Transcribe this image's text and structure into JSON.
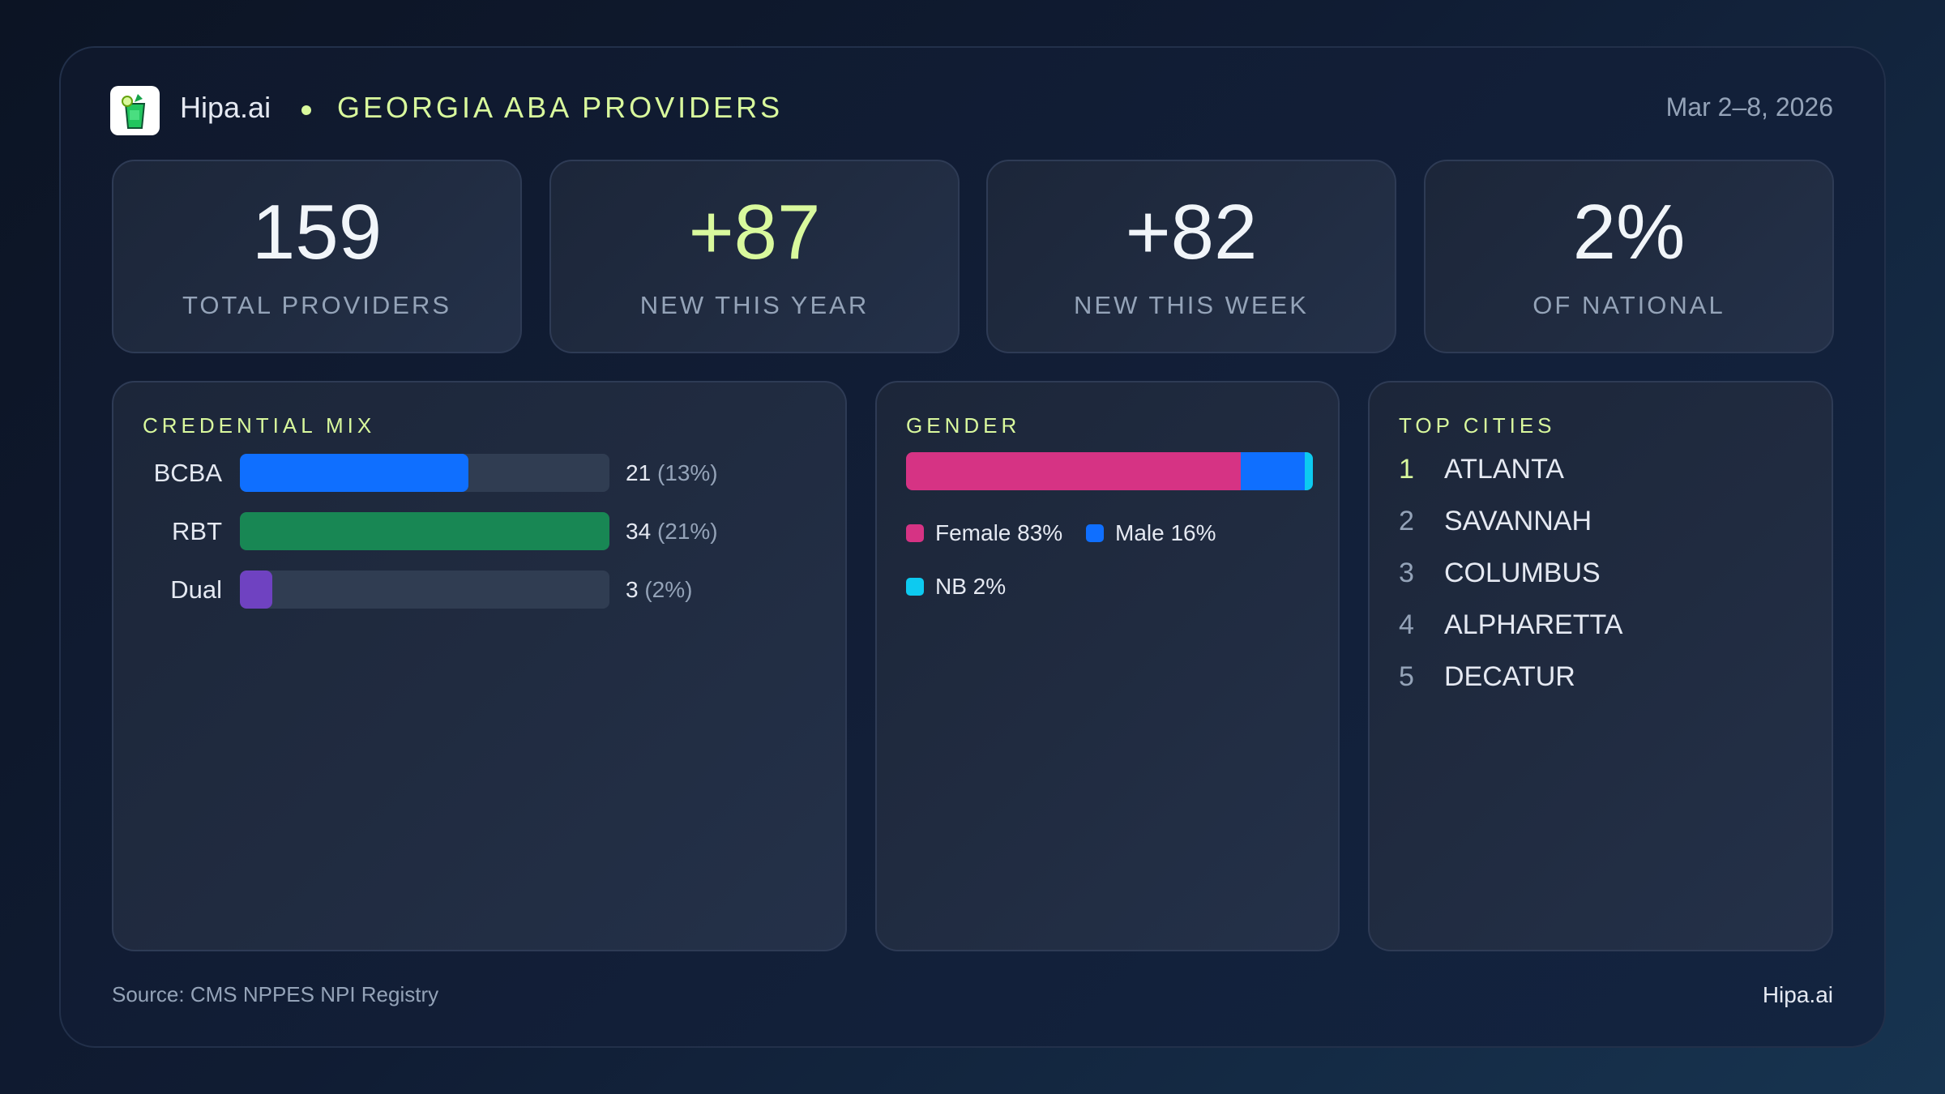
{
  "header": {
    "brand": "Hipa.ai",
    "title": "GEORGIA ABA PROVIDERS",
    "date_range": "Mar 2–8, 2026"
  },
  "kpis": [
    {
      "value": "159",
      "label": "TOTAL PROVIDERS",
      "accent": false
    },
    {
      "value": "+87",
      "label": "NEW THIS YEAR",
      "accent": true
    },
    {
      "value": "+82",
      "label": "NEW THIS WEEK",
      "accent": false
    },
    {
      "value": "2%",
      "label": "OF NATIONAL",
      "accent": false
    }
  ],
  "credential_mix": {
    "title": "CREDENTIAL MIX",
    "rows": [
      {
        "label": "BCBA",
        "count": "21",
        "pct": "(13%)",
        "value": 21,
        "color": "#0f6fff"
      },
      {
        "label": "RBT",
        "count": "34",
        "pct": "(21%)",
        "value": 34,
        "color": "#188754"
      },
      {
        "label": "Dual",
        "count": "3",
        "pct": "(2%)",
        "value": 3,
        "color": "#6f42c1"
      }
    ]
  },
  "gender": {
    "title": "GENDER",
    "segments": [
      {
        "label": "Female 83%",
        "value": 83,
        "color": "#d63384"
      },
      {
        "label": "Male 16%",
        "value": 16,
        "color": "#0f6fff"
      },
      {
        "label": "NB 2%",
        "value": 2,
        "color": "#0dcaf0"
      }
    ]
  },
  "top_cities": {
    "title": "TOP CITIES",
    "items": [
      {
        "rank": "1",
        "name": "ATLANTA"
      },
      {
        "rank": "2",
        "name": "SAVANNAH"
      },
      {
        "rank": "3",
        "name": "COLUMBUS"
      },
      {
        "rank": "4",
        "name": "ALPHARETTA"
      },
      {
        "rank": "5",
        "name": "DECATUR"
      }
    ]
  },
  "footer": {
    "source": "Source: CMS NPPES NPI Registry",
    "brand": "Hipa.ai"
  },
  "colors": {
    "accent": "#d9f99d",
    "card": "#1f2a3d",
    "track": "#2d3a4d"
  }
}
